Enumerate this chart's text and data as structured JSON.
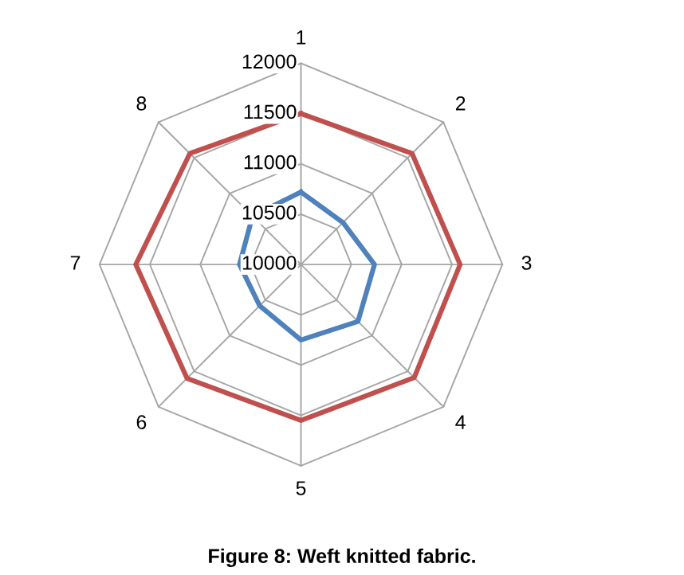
{
  "chart_data": {
    "type": "radar",
    "title": "Figure 8: Weft knitted fabric.",
    "categories": [
      "1",
      "2",
      "3",
      "4",
      "5",
      "6",
      "7",
      "8"
    ],
    "ylim": [
      10000,
      12000
    ],
    "yticks": [
      10000,
      10500,
      11000,
      11500,
      12000
    ],
    "grid": true,
    "series": [
      {
        "color": "#4f81bd",
        "values": [
          10720,
          10590,
          10730,
          10800,
          10750,
          10580,
          10610,
          10680
        ]
      },
      {
        "color": "#c0504d",
        "values": [
          11500,
          11560,
          11580,
          11590,
          11550,
          11600,
          11640,
          11560
        ]
      }
    ]
  }
}
